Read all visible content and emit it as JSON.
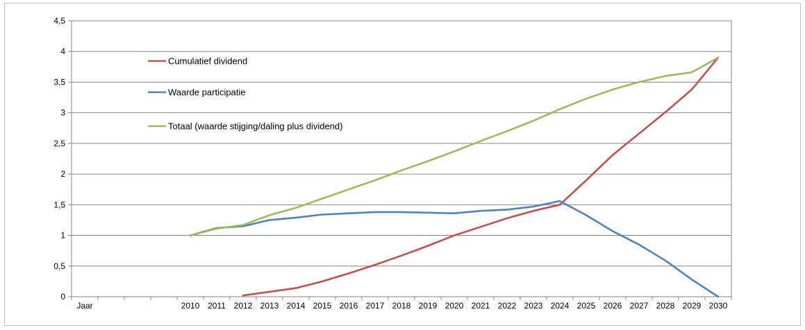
{
  "chart_data": {
    "type": "line",
    "title": "",
    "xlabel": "",
    "ylabel": "",
    "categories": [
      "Jaar",
      "",
      "",
      "",
      "2010",
      "2011",
      "2012",
      "2013",
      "2014",
      "2015",
      "2016",
      "2017",
      "2018",
      "2019",
      "2020",
      "2021",
      "2022",
      "2023",
      "2024",
      "2025",
      "2026",
      "2027",
      "2028",
      "2029",
      "2030"
    ],
    "y_ticks": [
      "0",
      "0,5",
      "1",
      "1,5",
      "2",
      "2,5",
      "3",
      "3,5",
      "4",
      "4,5"
    ],
    "ylim": [
      0,
      4.5
    ],
    "grid": "horizontal",
    "legend_position": "top-left",
    "series": [
      {
        "name": "Cumulatief dividend",
        "color": "#c0504d",
        "values": [
          null,
          null,
          null,
          null,
          null,
          null,
          0.02,
          0.08,
          0.14,
          0.25,
          0.38,
          0.52,
          0.67,
          0.83,
          1.0,
          1.14,
          1.28,
          1.4,
          1.5,
          1.9,
          2.31,
          2.66,
          3.01,
          3.38,
          3.9
        ]
      },
      {
        "name": "Waarde participatie",
        "color": "#4f81bd",
        "values": [
          null,
          null,
          null,
          null,
          1.0,
          1.12,
          1.15,
          1.25,
          1.29,
          1.34,
          1.36,
          1.38,
          1.38,
          1.37,
          1.36,
          1.4,
          1.42,
          1.47,
          1.56,
          1.33,
          1.07,
          0.85,
          0.59,
          0.28,
          0.0
        ]
      },
      {
        "name": "Totaal (waarde stijging/daling plus dividend)",
        "color": "#9bbb59",
        "values": [
          null,
          null,
          null,
          null,
          1.0,
          1.11,
          1.17,
          1.33,
          1.45,
          1.6,
          1.75,
          1.9,
          2.06,
          2.21,
          2.37,
          2.54,
          2.7,
          2.87,
          3.06,
          3.23,
          3.38,
          3.5,
          3.6,
          3.66,
          3.9
        ]
      }
    ]
  }
}
